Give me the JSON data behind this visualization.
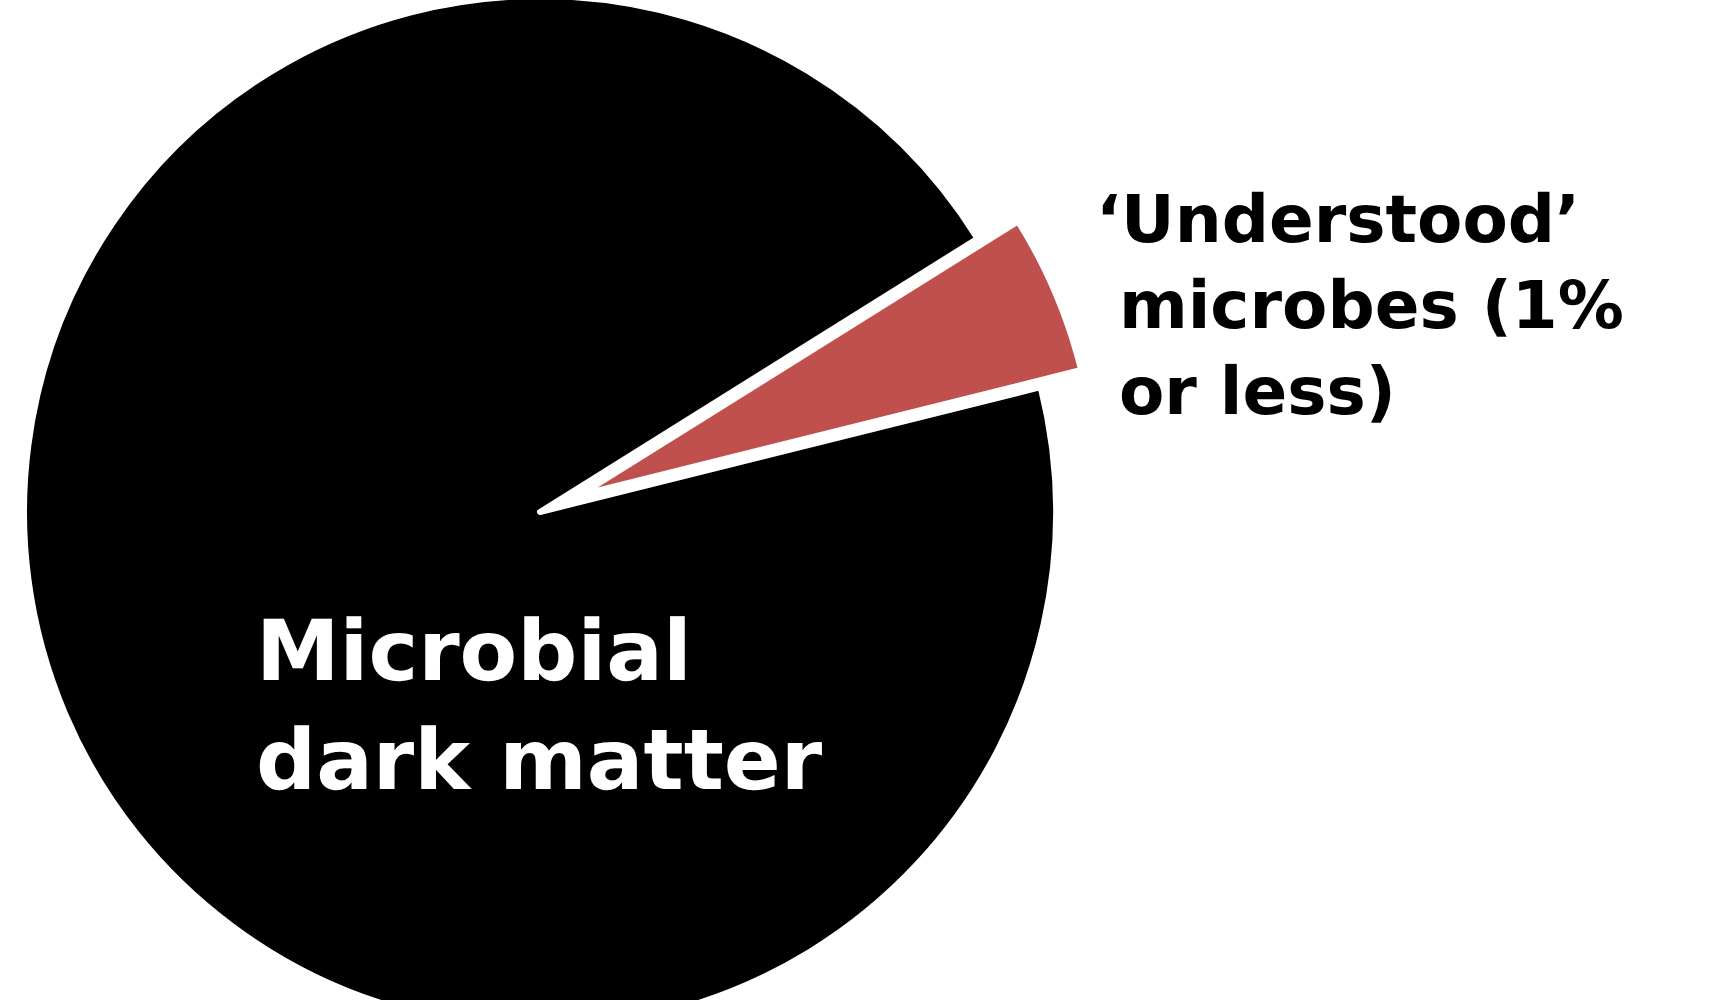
{
  "chart_data": {
    "type": "pie",
    "categories": [
      "‘Understood’ microbes (1% or less)",
      "Microbial dark matter"
    ],
    "values": [
      5,
      95
    ],
    "colors": [
      "#c0504d",
      "#000000"
    ]
  }
}
